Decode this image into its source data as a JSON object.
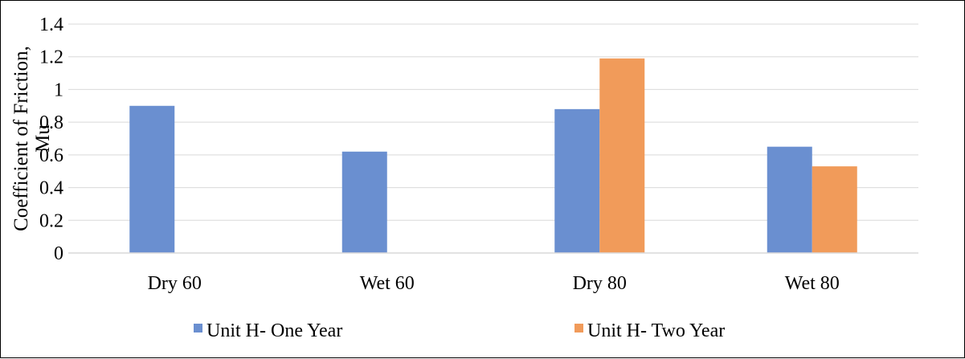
{
  "chart_data": {
    "type": "bar",
    "title": "",
    "xlabel": "",
    "ylabel_lines": [
      "Coefficient of Friction,",
      "Mu"
    ],
    "categories": [
      "Dry 60",
      "Wet 60",
      "Dry 80",
      "Wet 80"
    ],
    "series": [
      {
        "name": "Unit H- One Year",
        "color": "#6a8fd0",
        "values": [
          0.9,
          0.62,
          0.88,
          0.65
        ]
      },
      {
        "name": "Unit H- Two Year",
        "color": "#f19b5a",
        "values": [
          null,
          null,
          1.19,
          0.53
        ]
      }
    ],
    "ylim": [
      0,
      1.4
    ],
    "yticks": [
      "0",
      "0.2",
      "0.4",
      "0.6",
      "0.8",
      "1",
      "1.2",
      "1.4"
    ],
    "ytick_values": [
      0,
      0.2,
      0.4,
      0.6,
      0.8,
      1.0,
      1.2,
      1.4
    ],
    "grid": true,
    "legend_position": "bottom"
  }
}
